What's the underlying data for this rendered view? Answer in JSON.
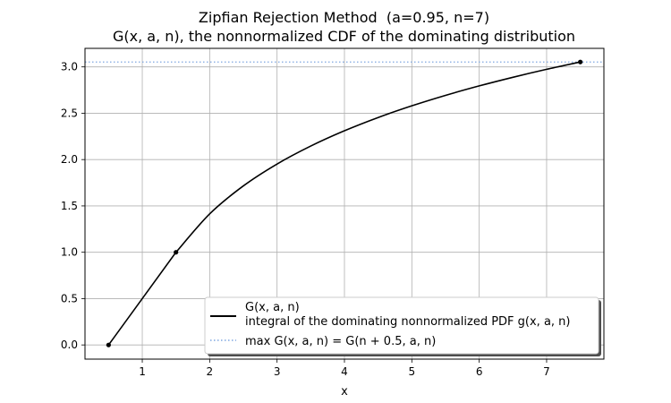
{
  "chart_data": {
    "type": "line",
    "title": "Zipfian Rejection Method  (a=0.95, n=7)",
    "subtitle": "G(x, a, n), the nonnormalized CDF of the dominating distribution",
    "xlabel": "x",
    "ylabel": "",
    "xlim": [
      0.15,
      7.85
    ],
    "ylim": [
      -0.153,
      3.2
    ],
    "xticks": [
      "1",
      "2",
      "3",
      "4",
      "5",
      "6",
      "7"
    ],
    "yticks": [
      "0.0",
      "0.5",
      "1.0",
      "1.5",
      "2.0",
      "2.5",
      "3.0"
    ],
    "grid": true,
    "legend_position": "lower-right",
    "params": {
      "a": 0.95,
      "n": 7
    },
    "series": [
      {
        "name": "G(x, a, n)\nintegral of the dominating nonnormalized PDF g(x, a, n)",
        "style": "solid",
        "color": "#000000",
        "x": [
          0.5,
          1.0,
          1.5,
          2.0,
          2.5,
          3.0,
          3.5,
          4.0,
          4.5,
          5.0,
          5.5,
          6.0,
          6.5,
          7.0,
          7.5
        ],
        "y": [
          0.0,
          0.5,
          1.0,
          1.414,
          1.716,
          1.952,
          2.146,
          2.311,
          2.454,
          2.58,
          2.693,
          2.795,
          2.888,
          2.974,
          3.053
        ]
      },
      {
        "name": "max G(x, a, n) = G(n + 0.5, a, n)",
        "style": "dotted",
        "color": "#7ea6e0",
        "y": 3.053
      }
    ],
    "markers": [
      {
        "x": 0.5,
        "y": 0.0
      },
      {
        "x": 1.5,
        "y": 1.0
      },
      {
        "x": 7.5,
        "y": 3.053
      }
    ]
  }
}
